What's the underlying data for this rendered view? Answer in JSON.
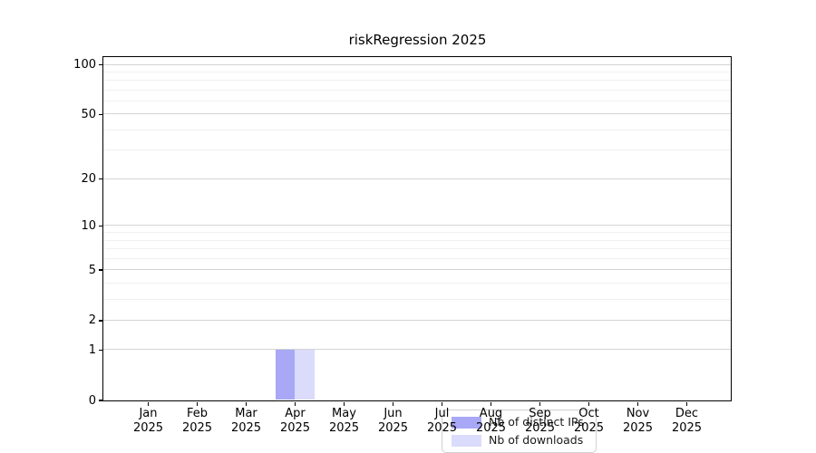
{
  "chart_data": {
    "type": "bar",
    "title": "riskRegression 2025",
    "categories": [
      "Jan 2025",
      "Feb 2025",
      "Mar 2025",
      "Apr 2025",
      "May 2025",
      "Jun 2025",
      "Jul 2025",
      "Aug 2025",
      "Sep 2025",
      "Oct 2025",
      "Nov 2025",
      "Dec 2025"
    ],
    "series": [
      {
        "name": "Nb of distinct IPs",
        "color": "#a8a8f6",
        "values": [
          0,
          0,
          0,
          1,
          0,
          0,
          0,
          0,
          0,
          0,
          0,
          0
        ]
      },
      {
        "name": "Nb of downloads",
        "color": "#dbdbfb",
        "values": [
          0,
          0,
          0,
          1,
          0,
          0,
          0,
          0,
          0,
          0,
          0,
          0
        ]
      }
    ],
    "y_scale": "log1p",
    "ylim": [
      0,
      100
    ],
    "y_ticks": [
      0,
      1,
      2,
      5,
      10,
      20,
      50,
      100
    ],
    "y_minor_gridlines": [
      3,
      4,
      6,
      7,
      8,
      9,
      30,
      40,
      60,
      70,
      80,
      90
    ],
    "grid": true,
    "legend_position": "lower center",
    "colors": {
      "major_grid": "#d4d4d4",
      "minor_grid": "#f0f0f0",
      "frame": "#000000",
      "tick_text": "#000000",
      "background": "#ffffff"
    }
  }
}
